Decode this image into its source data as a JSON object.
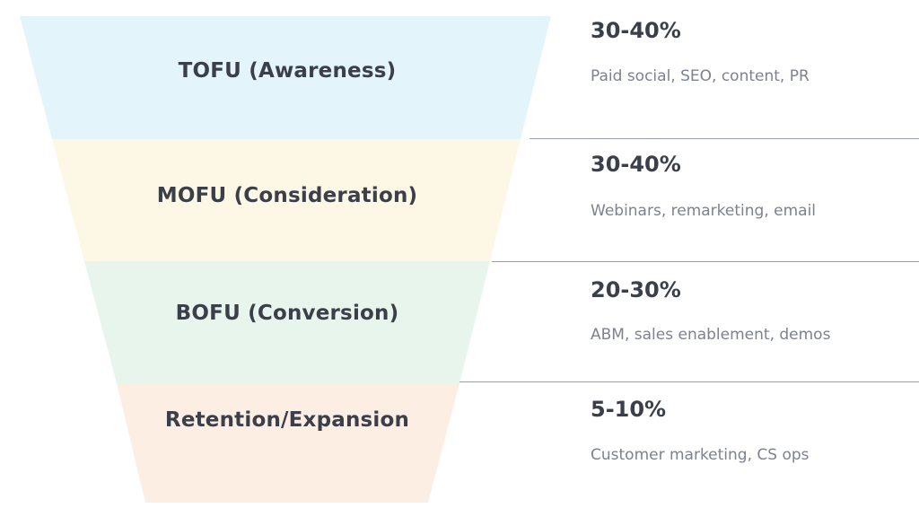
{
  "stages": [
    {
      "name": "TOFU (Awareness)",
      "share": "30-40%",
      "tactics": "Paid social, SEO, content, PR",
      "color": "#e3f4fb"
    },
    {
      "name": "MOFU (Consideration)",
      "share": "30-40%",
      "tactics": "Webinars, remarketing, email",
      "color": "#fdf7e6"
    },
    {
      "name": "BOFU (Conversion)",
      "share": "20-30%",
      "tactics": "ABM, sales enablement, demos",
      "color": "#e8f5ec"
    },
    {
      "name": "Retention/Expansion",
      "share": "5-10%",
      "tactics": "Customer marketing, CS ops",
      "color": "#fdeee4"
    }
  ],
  "colors": {
    "text": "#3a3f4a",
    "muted_text": "#7d8190",
    "divider": "#9a9ea8"
  }
}
